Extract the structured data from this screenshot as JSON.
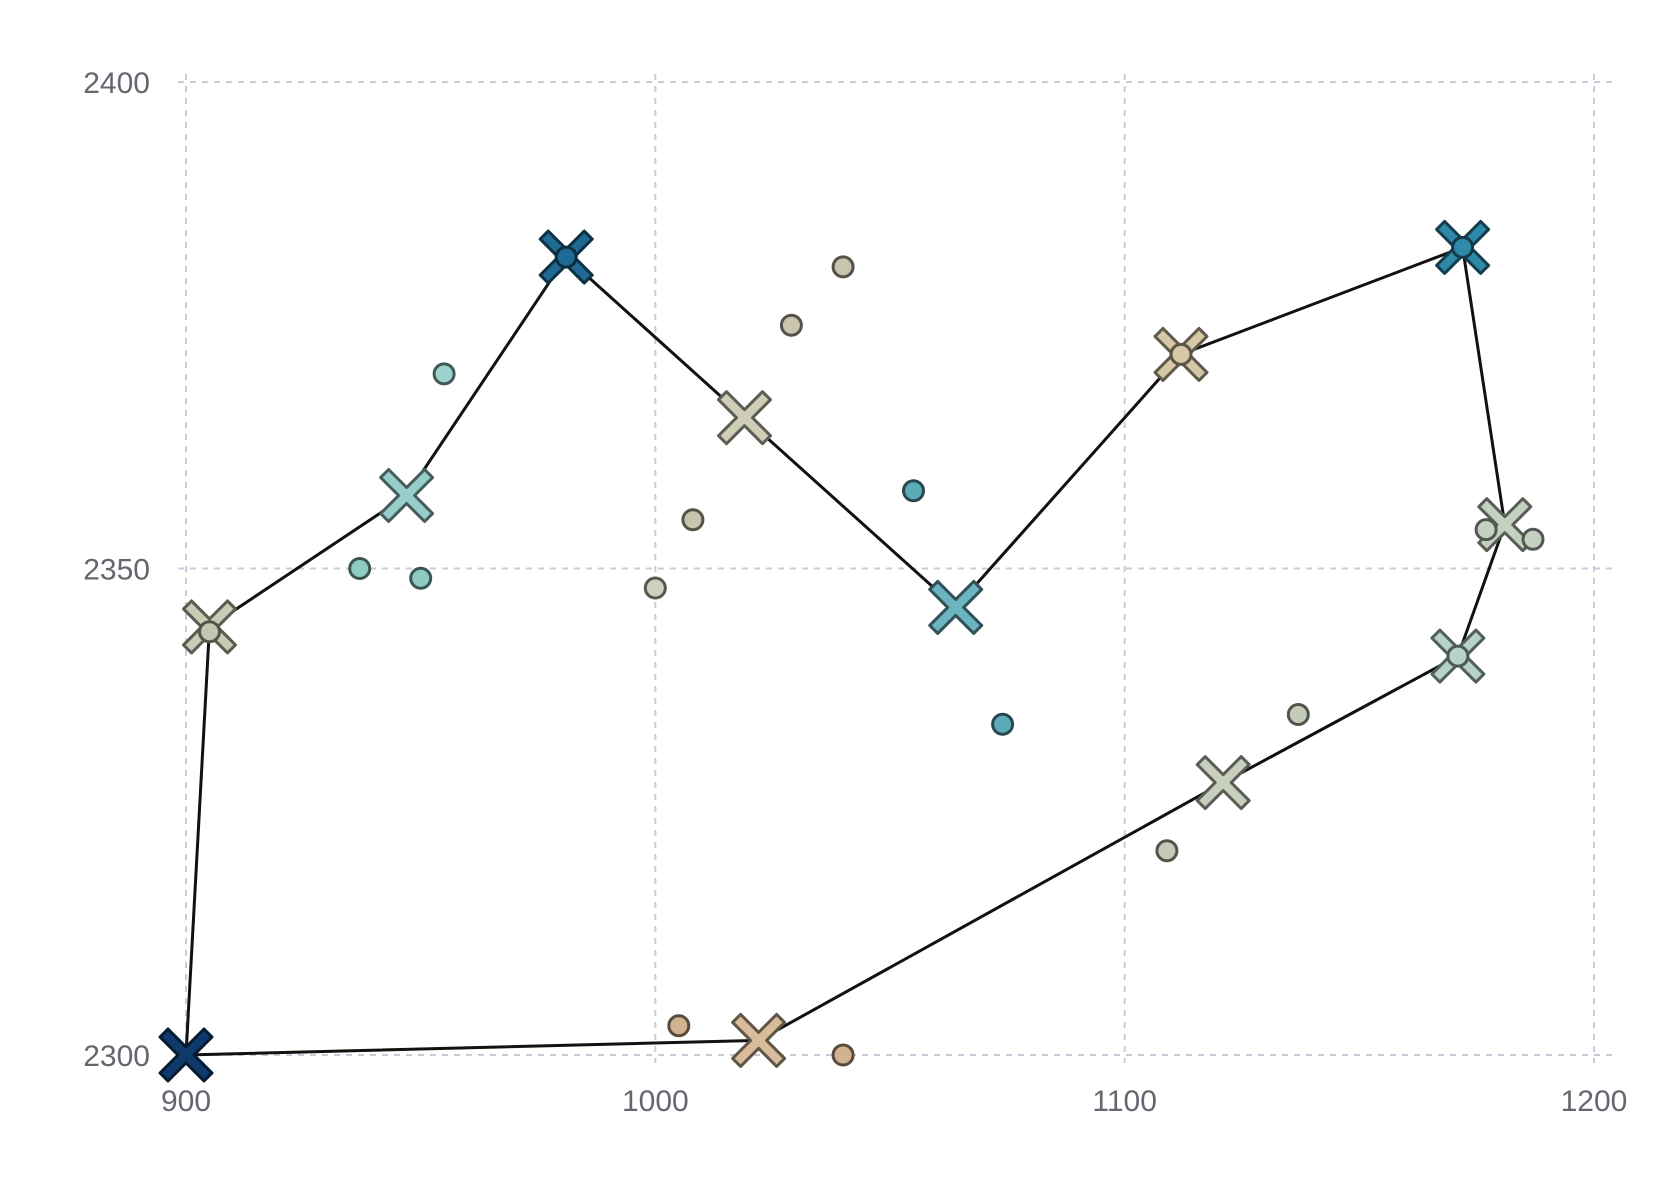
{
  "chart_data": {
    "type": "scatter",
    "title": "",
    "xlabel": "",
    "ylabel": "",
    "xlim": [
      900,
      1200
    ],
    "ylim": [
      2300,
      2400
    ],
    "x_ticks": [
      900,
      1000,
      1100,
      1200
    ],
    "y_ticks": [
      2300,
      2350,
      2400
    ],
    "grid": true,
    "legend": "none",
    "route": [
      {
        "x": 900,
        "y": 2300
      },
      {
        "x": 1022,
        "y": 2301.5
      },
      {
        "x": 1121,
        "y": 2328
      },
      {
        "x": 1171,
        "y": 2341
      },
      {
        "x": 1181,
        "y": 2354.5
      },
      {
        "x": 1172,
        "y": 2383
      },
      {
        "x": 1112,
        "y": 2372
      },
      {
        "x": 1064,
        "y": 2346
      },
      {
        "x": 1019,
        "y": 2365.5
      },
      {
        "x": 981,
        "y": 2382
      },
      {
        "x": 947,
        "y": 2357.5
      },
      {
        "x": 905,
        "y": 2344
      },
      {
        "x": 900,
        "y": 2300
      }
    ],
    "centers": [
      {
        "x": 900,
        "y": 2300,
        "color": "#0d3a6b"
      },
      {
        "x": 1022,
        "y": 2301.5,
        "color": "#d8bc9b"
      },
      {
        "x": 1121,
        "y": 2328,
        "color": "#c9cfbd"
      },
      {
        "x": 1171,
        "y": 2341,
        "color": "#b7d3c7"
      },
      {
        "x": 1181,
        "y": 2354.5,
        "color": "#c4d0c0"
      },
      {
        "x": 1172,
        "y": 2383,
        "color": "#2f8aaa"
      },
      {
        "x": 1112,
        "y": 2372,
        "color": "#d6c8a6"
      },
      {
        "x": 1064,
        "y": 2346,
        "color": "#6cb4c2"
      },
      {
        "x": 1019,
        "y": 2365.5,
        "color": "#cfcfb8"
      },
      {
        "x": 981,
        "y": 2382,
        "color": "#1f6a94"
      },
      {
        "x": 947,
        "y": 2357.5,
        "color": "#97cec9"
      },
      {
        "x": 905,
        "y": 2344,
        "color": "#c8ccb4"
      }
    ],
    "points": [
      {
        "x": 905,
        "y": 2343.5,
        "color": "#c3c7b1"
      },
      {
        "x": 937,
        "y": 2350,
        "color": "#8ecbc4"
      },
      {
        "x": 950,
        "y": 2349,
        "color": "#8ecbc4"
      },
      {
        "x": 955,
        "y": 2370,
        "color": "#9dd3cd"
      },
      {
        "x": 981,
        "y": 2382,
        "color": "#1f6a94"
      },
      {
        "x": 1000,
        "y": 2348,
        "color": "#d0d0c0"
      },
      {
        "x": 1008,
        "y": 2355,
        "color": "#c8c4ae"
      },
      {
        "x": 1029,
        "y": 2375,
        "color": "#c8c4ae"
      },
      {
        "x": 1040,
        "y": 2381,
        "color": "#c8c4ae"
      },
      {
        "x": 1005,
        "y": 2303,
        "color": "#d2b391"
      },
      {
        "x": 1040,
        "y": 2300,
        "color": "#d2b391"
      },
      {
        "x": 1055,
        "y": 2358,
        "color": "#5cabb8"
      },
      {
        "x": 1074,
        "y": 2334,
        "color": "#5cabb8"
      },
      {
        "x": 1109,
        "y": 2321,
        "color": "#c4cbb8"
      },
      {
        "x": 1112,
        "y": 2372,
        "color": "#d6c8a6"
      },
      {
        "x": 1137,
        "y": 2335,
        "color": "#c4cbb8"
      },
      {
        "x": 1171,
        "y": 2341,
        "color": "#b7d3c7"
      },
      {
        "x": 1172,
        "y": 2383,
        "color": "#2f8aaa"
      },
      {
        "x": 1177,
        "y": 2354,
        "color": "#c4d0c0"
      },
      {
        "x": 1187,
        "y": 2353,
        "color": "#c4d0c0"
      }
    ]
  }
}
